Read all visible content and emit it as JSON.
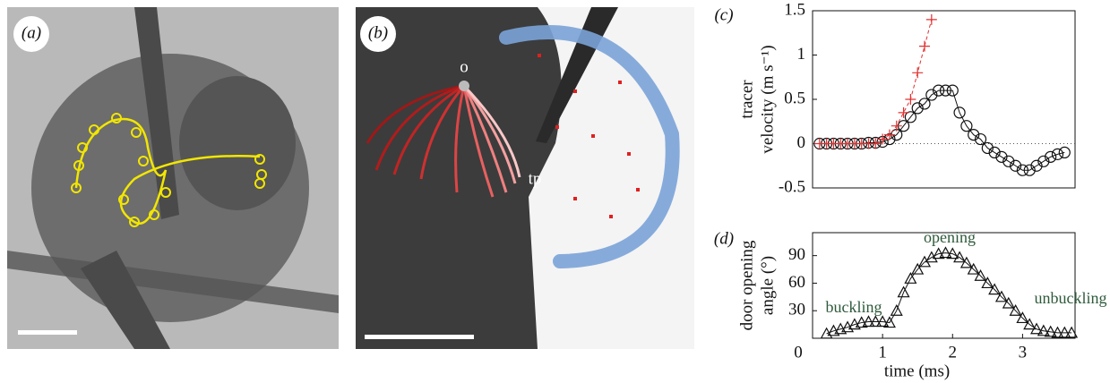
{
  "panels": {
    "a": {
      "label": "(a)"
    },
    "b": {
      "label": "(b)",
      "annotations": [
        "o",
        "tp"
      ]
    }
  },
  "chart_data": [
    {
      "type": "line",
      "panel_label": "(c)",
      "ylabel": [
        "tracer",
        "velocity (m s⁻¹)"
      ],
      "x": [
        0.1,
        0.2,
        0.3,
        0.4,
        0.5,
        0.6,
        0.7,
        0.8,
        0.9,
        1.0,
        1.1,
        1.2,
        1.3,
        1.4,
        1.5,
        1.6,
        1.7,
        1.8,
        1.9,
        2.0,
        2.1,
        2.2,
        2.3,
        2.4,
        2.5,
        2.6,
        2.7,
        2.8,
        2.9,
        3.0,
        3.1,
        3.2,
        3.3,
        3.4,
        3.5,
        3.6
      ],
      "series": [
        {
          "color": "#111111",
          "marker": "circle",
          "dash": false,
          "values": [
            0,
            0,
            0,
            0,
            0,
            0,
            0,
            0.01,
            0.01,
            0.02,
            0.05,
            0.1,
            0.2,
            0.3,
            0.4,
            0.45,
            0.55,
            0.6,
            0.6,
            0.6,
            0.35,
            0.2,
            0.1,
            0.05,
            -0.05,
            -0.1,
            -0.15,
            -0.2,
            -0.25,
            -0.3,
            -0.3,
            -0.25,
            -0.2,
            -0.15,
            -0.12,
            -0.1
          ]
        },
        {
          "color": "#e03030",
          "marker": "plus",
          "dash": true,
          "values": [
            0,
            0,
            0,
            0,
            0,
            0,
            0,
            0,
            0,
            0.05,
            0.1,
            0.2,
            0.35,
            0.5,
            0.8,
            1.1,
            1.4,
            null,
            null,
            null,
            null,
            null,
            null,
            null,
            null,
            null,
            null,
            null,
            null,
            null,
            null,
            null,
            null,
            null,
            null,
            null
          ]
        }
      ],
      "xlim": [
        0,
        3.75
      ],
      "ylim": [
        -0.5,
        1.5
      ],
      "yticks": [
        -0.5,
        0,
        0.5,
        1,
        1.5
      ],
      "zero_line": true
    },
    {
      "type": "line",
      "panel_label": "(d)",
      "ylabel": [
        "door opening",
        "angle (°)"
      ],
      "xlabel": "time (ms)",
      "x": [
        0.2,
        0.3,
        0.4,
        0.5,
        0.6,
        0.7,
        0.8,
        0.9,
        1.0,
        1.1,
        1.2,
        1.3,
        1.4,
        1.5,
        1.6,
        1.7,
        1.8,
        1.9,
        2.0,
        2.1,
        2.2,
        2.3,
        2.4,
        2.5,
        2.6,
        2.7,
        2.8,
        2.9,
        3.0,
        3.1,
        3.2,
        3.3,
        3.4,
        3.5,
        3.6,
        3.7
      ],
      "series": [
        {
          "color": "#111111",
          "marker": "triangle",
          "dash": false,
          "values": [
            5,
            8,
            10,
            12,
            15,
            17,
            18,
            18,
            18,
            17,
            30,
            50,
            65,
            75,
            83,
            88,
            92,
            93,
            92,
            88,
            82,
            75,
            68,
            60,
            53,
            45,
            38,
            30,
            22,
            15,
            10,
            8,
            7,
            6,
            6,
            6
          ]
        }
      ],
      "annotations": [
        "buckling",
        "opening",
        "unbuckling"
      ],
      "xlim": [
        0,
        3.75
      ],
      "xticks": [
        0,
        1,
        2,
        3
      ],
      "ylim": [
        0,
        115
      ],
      "yticks": [
        30,
        60,
        90
      ]
    }
  ]
}
